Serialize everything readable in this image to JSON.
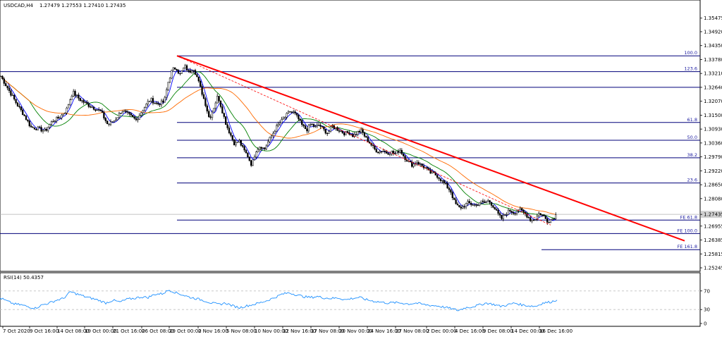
{
  "chart_data": [
    {
      "type": "candlestick",
      "title": "USDCAD,H4",
      "ohlc_header": "1.27479 1.27553 1.27410 1.27435",
      "ylim": [
        1.25245,
        1.36045
      ],
      "y_ticks": [
        "1.35475",
        "1.34920",
        "1.34350",
        "1.33780",
        "1.33210",
        "1.32640",
        "1.32070",
        "1.31500",
        "1.30930",
        "1.30360",
        "1.29790",
        "1.29220",
        "1.28650",
        "1.28080",
        "1.27435",
        "1.26955",
        "1.26385",
        "1.25815",
        "1.25245"
      ],
      "current_price": "1.27435",
      "x_ticks": [
        "7 Oct 2020",
        "9 Oct 16:00",
        "14 Oct 08:00",
        "19 Oct 00:00",
        "21 Oct 16:00",
        "26 Oct 08:00",
        "29 Oct 00:00",
        "2 Nov 16:00",
        "5 Nov 08:00",
        "10 Nov 00:00",
        "12 Nov 16:00",
        "17 Nov 08:00",
        "20 Nov 00:00",
        "24 Nov 16:00",
        "27 Nov 08:00",
        "2 Dec 00:00",
        "4 Dec 16:00",
        "9 Dec 08:00",
        "14 Dec 00:00",
        "16 Dec 16:00"
      ],
      "price_path": [
        [
          0,
          1.3315
        ],
        [
          5,
          1.329
        ],
        [
          14,
          1.3245
        ],
        [
          24,
          1.3195
        ],
        [
          34,
          1.315
        ],
        [
          44,
          1.31
        ],
        [
          54,
          1.3095
        ],
        [
          64,
          1.3085
        ],
        [
          74,
          1.3125
        ],
        [
          84,
          1.314
        ],
        [
          94,
          1.317
        ],
        [
          103,
          1.3245
        ],
        [
          113,
          1.3215
        ],
        [
          123,
          1.3195
        ],
        [
          133,
          1.318
        ],
        [
          143,
          1.3165
        ],
        [
          153,
          1.311
        ],
        [
          163,
          1.313
        ],
        [
          173,
          1.317
        ],
        [
          183,
          1.315
        ],
        [
          193,
          1.313
        ],
        [
          203,
          1.3175
        ],
        [
          213,
          1.3215
        ],
        [
          223,
          1.3195
        ],
        [
          233,
          1.3205
        ],
        [
          238,
          1.328
        ],
        [
          244,
          1.3335
        ],
        [
          250,
          1.3345
        ],
        [
          255,
          1.3315
        ],
        [
          262,
          1.335
        ],
        [
          268,
          1.3325
        ],
        [
          274,
          1.3345
        ],
        [
          279,
          1.331
        ],
        [
          285,
          1.3255
        ],
        [
          291,
          1.32
        ],
        [
          297,
          1.3135
        ],
        [
          303,
          1.318
        ],
        [
          309,
          1.323
        ],
        [
          315,
          1.317
        ],
        [
          321,
          1.311
        ],
        [
          327,
          1.307
        ],
        [
          333,
          1.303
        ],
        [
          339,
          1.3045
        ],
        [
          345,
          1.301
        ],
        [
          351,
          1.2985
        ],
        [
          357,
          1.2945
        ],
        [
          363,
          1.3005
        ],
        [
          369,
          1.3025
        ],
        [
          375,
          1.301
        ],
        [
          381,
          1.3045
        ],
        [
          387,
          1.3075
        ],
        [
          393,
          1.3105
        ],
        [
          399,
          1.3125
        ],
        [
          405,
          1.3145
        ],
        [
          411,
          1.3165
        ],
        [
          417,
          1.316
        ],
        [
          423,
          1.3135
        ],
        [
          429,
          1.3105
        ],
        [
          435,
          1.309
        ],
        [
          441,
          1.3115
        ],
        [
          447,
          1.31
        ],
        [
          453,
          1.311
        ],
        [
          459,
          1.309
        ],
        [
          465,
          1.3075
        ],
        [
          471,
          1.3105
        ],
        [
          477,
          1.3095
        ],
        [
          483,
          1.3085
        ],
        [
          489,
          1.3075
        ],
        [
          495,
          1.308
        ],
        [
          501,
          1.3065
        ],
        [
          507,
          1.308
        ],
        [
          513,
          1.3085
        ],
        [
          519,
          1.3055
        ],
        [
          525,
          1.3035
        ],
        [
          531,
          1.301
        ],
        [
          537,
          1.3
        ],
        [
          543,
          1.3005
        ],
        [
          549,
          1.2995
        ],
        [
          555,
          1.3
        ],
        [
          561,
          1.299
        ],
        [
          567,
          1.301
        ],
        [
          573,
          1.298
        ],
        [
          579,
          1.296
        ],
        [
          585,
          1.2945
        ],
        [
          591,
          1.296
        ],
        [
          597,
          1.2945
        ],
        [
          603,
          1.2935
        ],
        [
          609,
          1.2915
        ],
        [
          615,
          1.291
        ],
        [
          621,
          1.29
        ],
        [
          627,
          1.288
        ],
        [
          633,
          1.286
        ],
        [
          639,
          1.284
        ],
        [
          645,
          1.279
        ],
        [
          651,
          1.277
        ],
        [
          657,
          1.2775
        ],
        [
          663,
          1.279
        ],
        [
          669,
          1.2785
        ],
        [
          675,
          1.278
        ],
        [
          681,
          1.2795
        ],
        [
          687,
          1.279
        ],
        [
          693,
          1.28
        ],
        [
          699,
          1.278
        ],
        [
          705,
          1.275
        ],
        [
          711,
          1.2725
        ],
        [
          717,
          1.2745
        ],
        [
          723,
          1.276
        ],
        [
          729,
          1.275
        ],
        [
          735,
          1.2765
        ],
        [
          741,
          1.2755
        ],
        [
          747,
          1.274
        ],
        [
          753,
          1.272
        ],
        [
          759,
          1.2725
        ],
        [
          765,
          1.275
        ],
        [
          771,
          1.2735
        ],
        [
          777,
          1.2715
        ],
        [
          783,
          1.2725
        ],
        [
          789,
          1.2743
        ]
      ],
      "trendline": [
        [
          251,
          1.3393
        ],
        [
          971,
          1.2635
        ]
      ],
      "channel_line": [
        [
          251,
          1.3393
        ],
        [
          781,
          1.27
        ]
      ],
      "fibonacci_retracement": [
        {
          "label": "100.0",
          "price": 1.3393,
          "x_start": 251
        },
        {
          "label": "123.6",
          "price": 1.33285,
          "x_start": 0
        },
        {
          "label": "",
          "price": 1.3264,
          "x_start": 251
        },
        {
          "label": "61.8",
          "price": 1.312,
          "x_start": 251
        },
        {
          "label": "50.0",
          "price": 1.3047,
          "x_start": 251
        },
        {
          "label": "38.2",
          "price": 1.29755,
          "x_start": 251
        },
        {
          "label": "23.6",
          "price": 1.2872,
          "x_start": 251
        }
      ],
      "fibonacci_expansion": [
        {
          "label": "FE 61.8",
          "price": 1.272,
          "x_start": 251
        },
        {
          "label": "FE 100.0",
          "price": 1.2665,
          "x_start": 0
        },
        {
          "label": "FE 161.8",
          "price": 1.2599,
          "x_start": 768
        }
      ],
      "colors": {
        "candles": "#000000",
        "ma_fast": "#0000ff",
        "ma_mid": "#008000",
        "ma_slow": "#ff6a00",
        "trendline": "#ff0000",
        "fib_lines": "#00007a",
        "fib_labels": "#1a1aa0",
        "rsi": "#1e90ff",
        "grid_dashed": "#c0c0c0"
      }
    },
    {
      "type": "line",
      "title": "RSI(14) 50.4357",
      "ylim": [
        0,
        100
      ],
      "y_ticks": [
        "70",
        "30",
        "0"
      ],
      "levels": [
        70,
        30
      ],
      "values_path": [
        [
          0,
          55
        ],
        [
          10,
          48
        ],
        [
          20,
          42
        ],
        [
          30,
          40
        ],
        [
          40,
          36
        ],
        [
          50,
          33
        ],
        [
          60,
          40
        ],
        [
          70,
          44
        ],
        [
          80,
          50
        ],
        [
          90,
          54
        ],
        [
          100,
          68
        ],
        [
          110,
          63
        ],
        [
          120,
          58
        ],
        [
          130,
          54
        ],
        [
          140,
          50
        ],
        [
          150,
          44
        ],
        [
          160,
          50
        ],
        [
          170,
          46
        ],
        [
          180,
          52
        ],
        [
          190,
          54
        ],
        [
          200,
          57
        ],
        [
          210,
          56
        ],
        [
          220,
          63
        ],
        [
          230,
          64
        ],
        [
          240,
          72
        ],
        [
          250,
          66
        ],
        [
          260,
          61
        ],
        [
          270,
          56
        ],
        [
          280,
          53
        ],
        [
          290,
          49
        ],
        [
          300,
          44
        ],
        [
          310,
          41
        ],
        [
          320,
          44
        ],
        [
          330,
          38
        ],
        [
          340,
          34
        ],
        [
          350,
          38
        ],
        [
          360,
          41
        ],
        [
          370,
          45
        ],
        [
          380,
          50
        ],
        [
          390,
          56
        ],
        [
          400,
          63
        ],
        [
          410,
          66
        ],
        [
          420,
          62
        ],
        [
          430,
          58
        ],
        [
          440,
          56
        ],
        [
          450,
          58
        ],
        [
          460,
          55
        ],
        [
          470,
          54
        ],
        [
          480,
          55
        ],
        [
          490,
          51
        ],
        [
          500,
          54
        ],
        [
          510,
          56
        ],
        [
          520,
          51
        ],
        [
          530,
          48
        ],
        [
          540,
          46
        ],
        [
          550,
          44
        ],
        [
          560,
          45
        ],
        [
          570,
          44
        ],
        [
          580,
          42
        ],
        [
          590,
          44
        ],
        [
          600,
          41
        ],
        [
          610,
          39
        ],
        [
          620,
          38
        ],
        [
          630,
          35
        ],
        [
          640,
          32
        ],
        [
          650,
          28
        ],
        [
          660,
          34
        ],
        [
          670,
          36
        ],
        [
          680,
          40
        ],
        [
          690,
          44
        ],
        [
          700,
          41
        ],
        [
          710,
          37
        ],
        [
          720,
          40
        ],
        [
          730,
          44
        ],
        [
          740,
          40
        ],
        [
          750,
          38
        ],
        [
          760,
          37
        ],
        [
          770,
          44
        ],
        [
          780,
          46
        ],
        [
          790,
          50.4357
        ]
      ]
    }
  ]
}
